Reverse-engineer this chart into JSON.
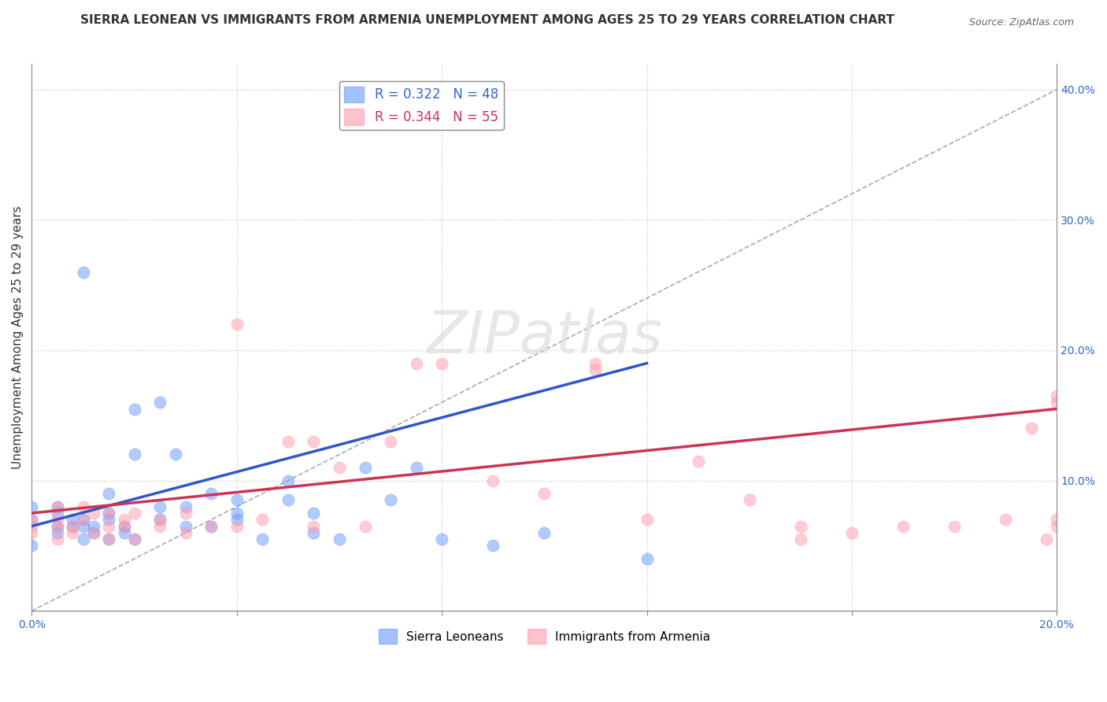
{
  "title": "SIERRA LEONEAN VS IMMIGRANTS FROM ARMENIA UNEMPLOYMENT AMONG AGES 25 TO 29 YEARS CORRELATION CHART",
  "source": "Source: ZipAtlas.com",
  "ylabel": "Unemployment Among Ages 25 to 29 years",
  "xlim": [
    0.0,
    0.2
  ],
  "ylim": [
    0.0,
    0.42
  ],
  "legend1_label": "R = 0.322   N = 48",
  "legend2_label": "R = 0.344   N = 55",
  "legend1_color": "#6699ff",
  "legend2_color": "#ff99aa",
  "series1_color": "#6699ff",
  "series2_color": "#ff99aa",
  "watermark": "ZIPatlas",
  "blue_scatter_x": [
    0.0,
    0.0,
    0.0,
    0.005,
    0.005,
    0.005,
    0.005,
    0.008,
    0.008,
    0.01,
    0.01,
    0.01,
    0.01,
    0.012,
    0.012,
    0.015,
    0.015,
    0.015,
    0.015,
    0.018,
    0.018,
    0.02,
    0.02,
    0.02,
    0.025,
    0.025,
    0.025,
    0.028,
    0.03,
    0.03,
    0.035,
    0.035,
    0.04,
    0.04,
    0.04,
    0.045,
    0.05,
    0.05,
    0.055,
    0.055,
    0.06,
    0.065,
    0.07,
    0.075,
    0.08,
    0.09,
    0.1,
    0.12
  ],
  "blue_scatter_y": [
    0.05,
    0.07,
    0.08,
    0.06,
    0.065,
    0.075,
    0.08,
    0.065,
    0.07,
    0.055,
    0.065,
    0.07,
    0.26,
    0.06,
    0.065,
    0.055,
    0.07,
    0.075,
    0.09,
    0.06,
    0.065,
    0.055,
    0.12,
    0.155,
    0.07,
    0.08,
    0.16,
    0.12,
    0.065,
    0.08,
    0.065,
    0.09,
    0.07,
    0.075,
    0.085,
    0.055,
    0.085,
    0.1,
    0.06,
    0.075,
    0.055,
    0.11,
    0.085,
    0.11,
    0.055,
    0.05,
    0.06,
    0.04
  ],
  "pink_scatter_x": [
    0.0,
    0.0,
    0.0,
    0.005,
    0.005,
    0.005,
    0.005,
    0.008,
    0.008,
    0.01,
    0.01,
    0.012,
    0.012,
    0.015,
    0.015,
    0.015,
    0.018,
    0.018,
    0.02,
    0.02,
    0.025,
    0.025,
    0.03,
    0.03,
    0.035,
    0.04,
    0.04,
    0.045,
    0.05,
    0.055,
    0.055,
    0.06,
    0.065,
    0.07,
    0.075,
    0.08,
    0.09,
    0.1,
    0.11,
    0.11,
    0.12,
    0.13,
    0.14,
    0.15,
    0.15,
    0.16,
    0.17,
    0.18,
    0.19,
    0.195,
    0.198,
    0.2,
    0.2,
    0.2,
    0.2
  ],
  "pink_scatter_y": [
    0.06,
    0.065,
    0.07,
    0.055,
    0.065,
    0.07,
    0.08,
    0.06,
    0.065,
    0.07,
    0.08,
    0.06,
    0.075,
    0.055,
    0.065,
    0.075,
    0.065,
    0.07,
    0.055,
    0.075,
    0.065,
    0.07,
    0.06,
    0.075,
    0.065,
    0.065,
    0.22,
    0.07,
    0.13,
    0.065,
    0.13,
    0.11,
    0.065,
    0.13,
    0.19,
    0.19,
    0.1,
    0.09,
    0.19,
    0.185,
    0.07,
    0.115,
    0.085,
    0.065,
    0.055,
    0.06,
    0.065,
    0.065,
    0.07,
    0.14,
    0.055,
    0.065,
    0.07,
    0.165,
    0.16
  ],
  "blue_line_x": [
    0.0,
    0.12
  ],
  "blue_line_y": [
    0.065,
    0.19
  ],
  "pink_line_x": [
    0.0,
    0.2
  ],
  "pink_line_y": [
    0.075,
    0.155
  ],
  "diag_line_x": [
    0.0,
    0.2
  ],
  "diag_line_y": [
    0.0,
    0.4
  ],
  "title_fontsize": 11,
  "axis_label_fontsize": 11,
  "tick_fontsize": 10
}
